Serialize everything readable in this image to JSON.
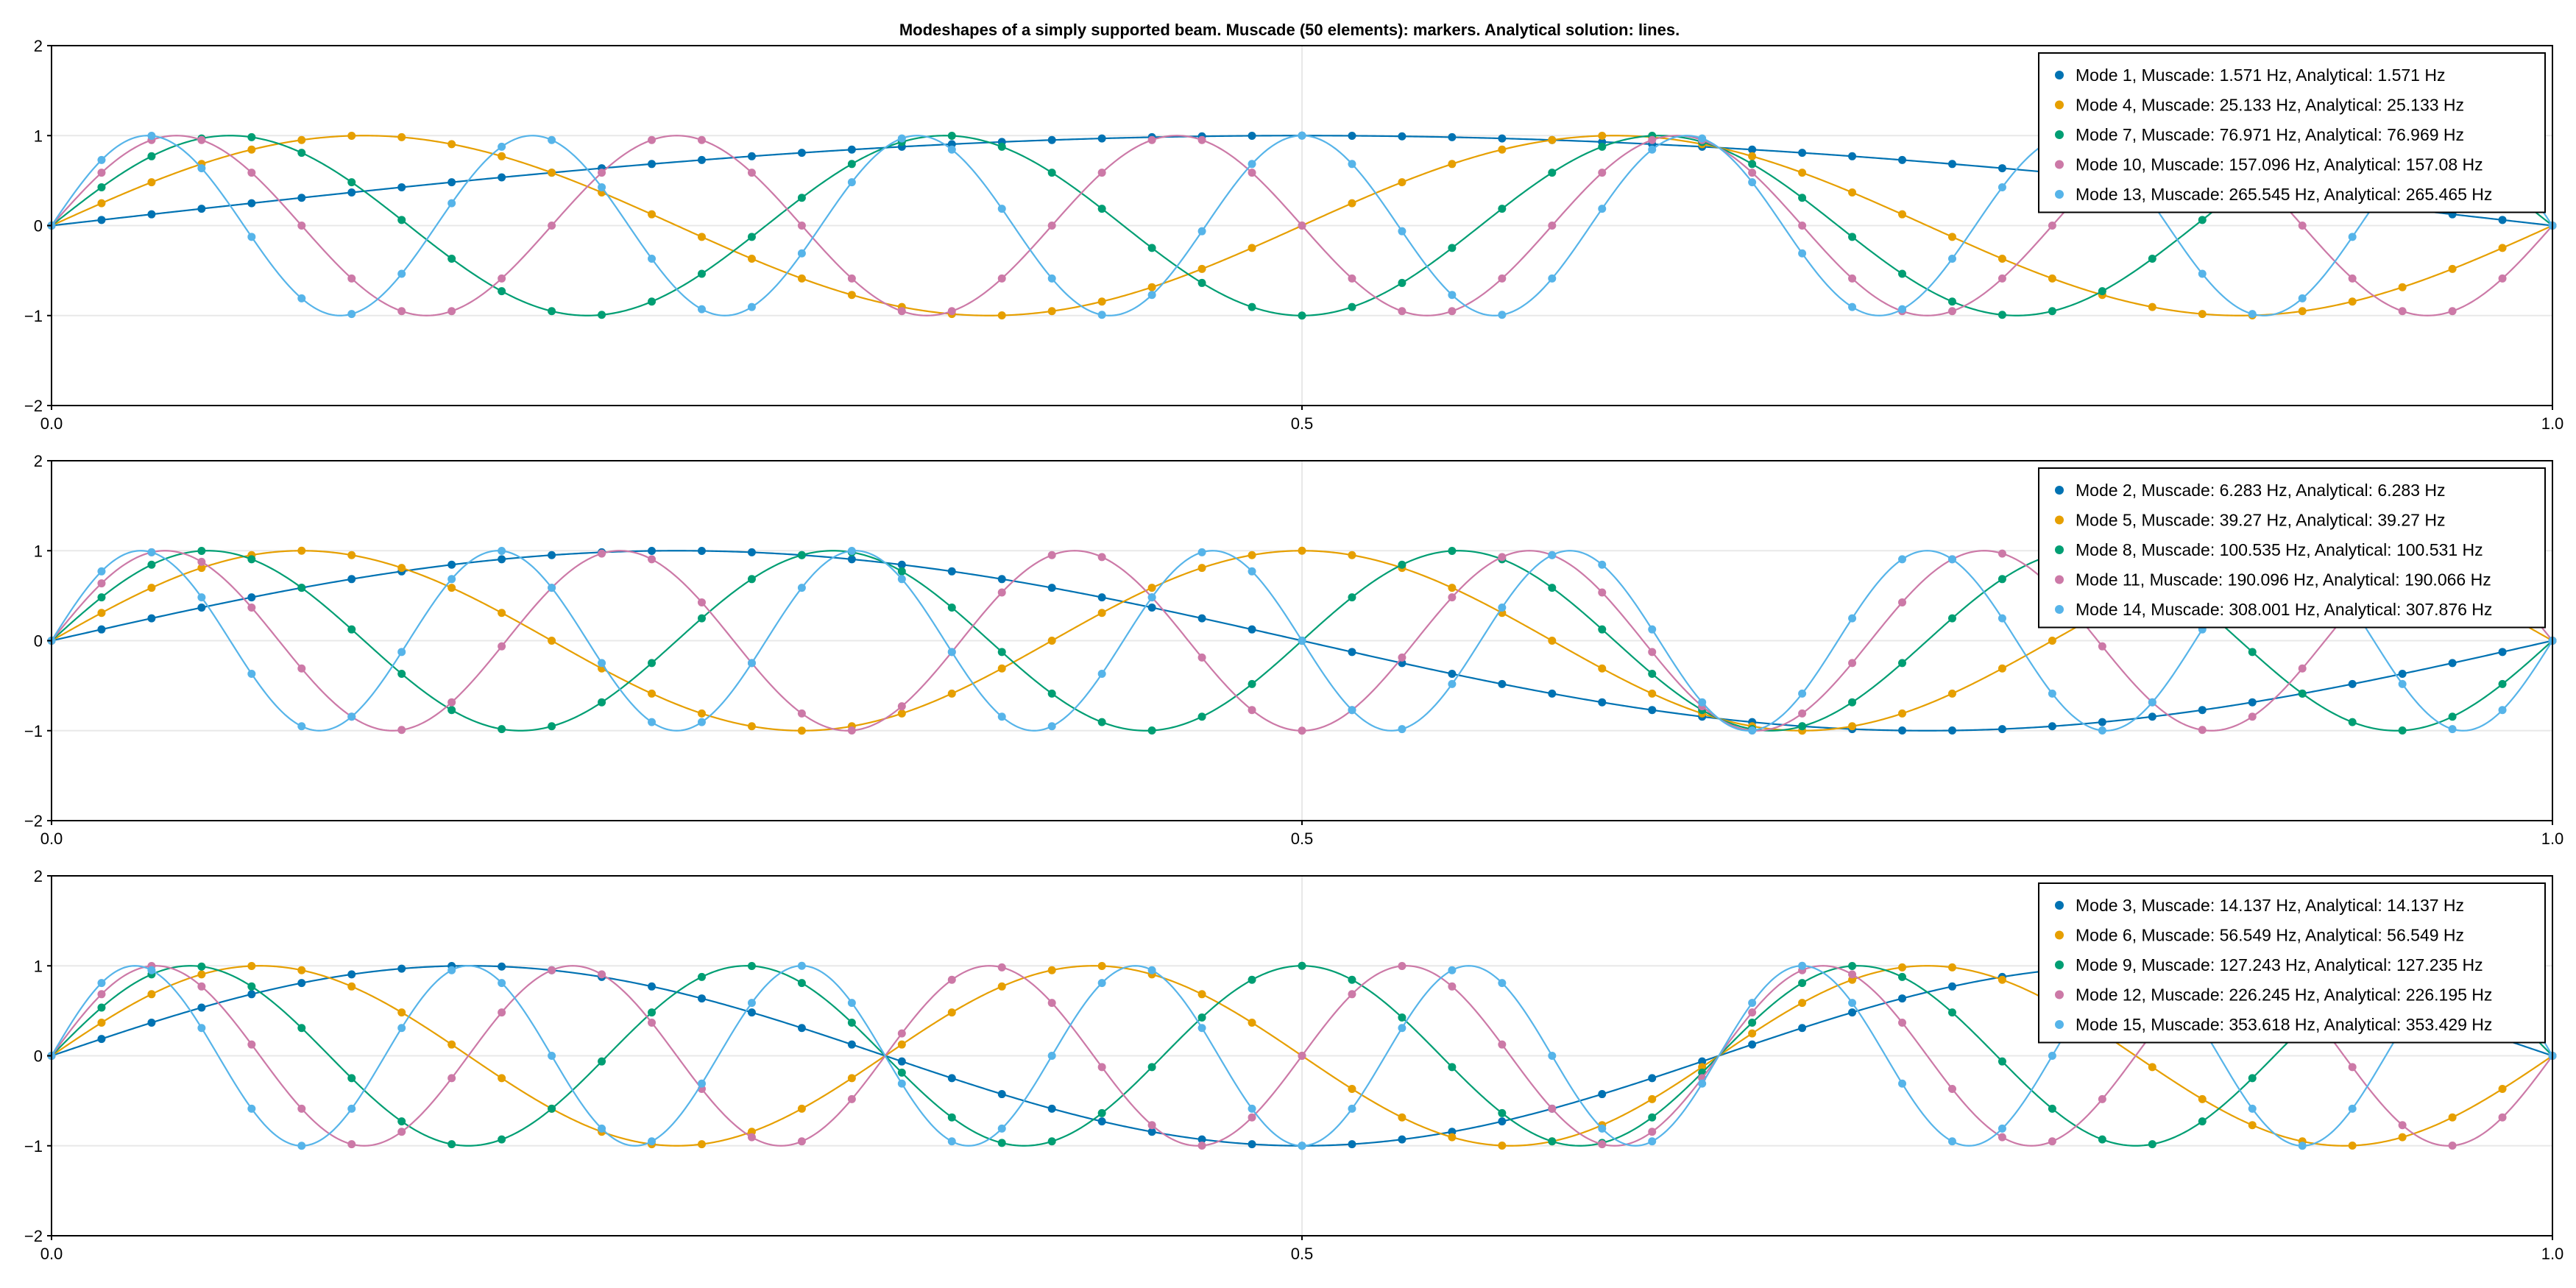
{
  "title": "Modeshapes of a simply supported beam. Muscade (50 elements): markers. Analytical solution: lines.",
  "colors": [
    "#0072b2",
    "#e69f00",
    "#009e73",
    "#cc79a7",
    "#56b4e9"
  ],
  "chart_data": [
    {
      "type": "line",
      "xlim": [
        0,
        1
      ],
      "ylim": [
        -2,
        2
      ],
      "x_ticks": [
        "0.0",
        "0.5",
        "1.0"
      ],
      "y_ticks": [
        "2",
        "1",
        "0",
        "−1",
        "−2"
      ],
      "grid": true,
      "legend_position": "top-right",
      "series": [
        {
          "name": "Mode 1, Muscade: 1.571 Hz, Analytical: 1.571 Hz",
          "mode": 1
        },
        {
          "name": "Mode 4, Muscade: 25.133 Hz, Analytical: 25.133 Hz",
          "mode": 4
        },
        {
          "name": "Mode 7, Muscade: 76.971 Hz, Analytical: 76.969 Hz",
          "mode": 7
        },
        {
          "name": "Mode 10, Muscade: 157.096 Hz, Analytical: 157.08 Hz",
          "mode": 10
        },
        {
          "name": "Mode 13, Muscade: 265.545 Hz, Analytical: 265.465 Hz",
          "mode": 13
        }
      ]
    },
    {
      "type": "line",
      "xlim": [
        0,
        1
      ],
      "ylim": [
        -2,
        2
      ],
      "x_ticks": [
        "0.0",
        "0.5",
        "1.0"
      ],
      "y_ticks": [
        "2",
        "1",
        "0",
        "−1",
        "−2"
      ],
      "grid": true,
      "legend_position": "top-right",
      "series": [
        {
          "name": "Mode 2, Muscade: 6.283 Hz, Analytical: 6.283 Hz",
          "mode": 2
        },
        {
          "name": "Mode 5, Muscade: 39.27 Hz, Analytical: 39.27 Hz",
          "mode": 5
        },
        {
          "name": "Mode 8, Muscade: 100.535 Hz, Analytical: 100.531 Hz",
          "mode": 8
        },
        {
          "name": "Mode 11, Muscade: 190.096 Hz, Analytical: 190.066 Hz",
          "mode": 11
        },
        {
          "name": "Mode 14, Muscade: 308.001 Hz, Analytical: 307.876 Hz",
          "mode": 14
        }
      ]
    },
    {
      "type": "line",
      "xlim": [
        0,
        1
      ],
      "ylim": [
        -2,
        2
      ],
      "x_ticks": [
        "0.0",
        "0.5",
        "1.0"
      ],
      "y_ticks": [
        "2",
        "1",
        "0",
        "−1",
        "−2"
      ],
      "grid": true,
      "legend_position": "top-right",
      "series": [
        {
          "name": "Mode 3, Muscade: 14.137 Hz, Analytical: 14.137 Hz",
          "mode": 3
        },
        {
          "name": "Mode 6, Muscade: 56.549 Hz, Analytical: 56.549 Hz",
          "mode": 6
        },
        {
          "name": "Mode 9, Muscade: 127.243 Hz, Analytical: 127.235 Hz",
          "mode": 9
        },
        {
          "name": "Mode 12, Muscade: 226.245 Hz, Analytical: 226.195 Hz",
          "mode": 12
        },
        {
          "name": "Mode 15, Muscade: 353.618 Hz, Analytical: 353.429 Hz",
          "mode": 15
        }
      ]
    }
  ]
}
